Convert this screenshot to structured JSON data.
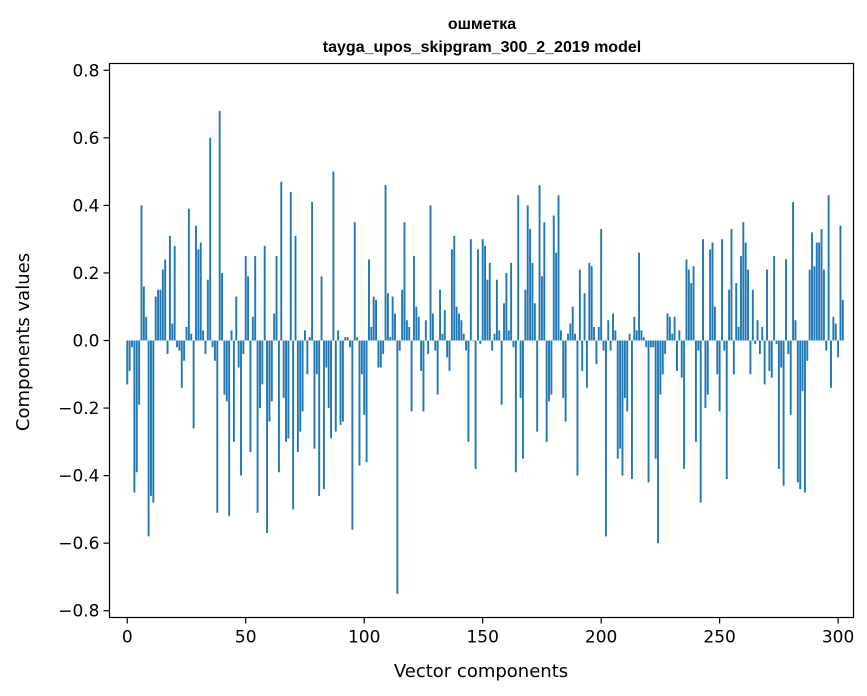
{
  "chart_data": {
    "type": "bar",
    "title_line1": "ошметка",
    "title_line2": "tayga_upos_skipgram_300_2_2019 model",
    "xlabel": "Vector components",
    "ylabel": "Components values",
    "xlim": [
      -7.5,
      306.5
    ],
    "ylim": [
      -0.82,
      0.82
    ],
    "xticks": [
      0,
      50,
      100,
      150,
      200,
      250,
      300
    ],
    "yticks": [
      0.8,
      0.6,
      0.4,
      0.2,
      0.0,
      -0.2,
      -0.4,
      -0.6,
      -0.8
    ],
    "ytick_labels": [
      "0.8",
      "0.6",
      "0.4",
      "0.2",
      "0.0",
      "−0.2",
      "−0.4",
      "−0.6",
      "−0.8"
    ],
    "bar_color": "#1f77b4",
    "values": [
      -0.13,
      -0.09,
      -0.02,
      -0.45,
      -0.39,
      -0.19,
      0.4,
      0.16,
      0.07,
      -0.58,
      -0.46,
      -0.48,
      0.13,
      0.15,
      0.15,
      0.21,
      0.24,
      -0.04,
      0.31,
      0.05,
      0.28,
      -0.02,
      -0.03,
      -0.14,
      -0.06,
      0.04,
      0.39,
      0.02,
      -0.26,
      0.34,
      0.27,
      0.29,
      0.03,
      -0.04,
      0.18,
      0.6,
      -0.02,
      -0.06,
      -0.51,
      0.68,
      0.2,
      -0.16,
      -0.18,
      -0.52,
      0.03,
      -0.3,
      0.13,
      -0.08,
      -0.4,
      -0.04,
      0.25,
      0.19,
      -0.33,
      0.07,
      0.25,
      -0.51,
      -0.2,
      -0.13,
      0.28,
      -0.57,
      -0.24,
      -0.18,
      0.08,
      0.25,
      -0.39,
      0.47,
      -0.17,
      -0.3,
      -0.29,
      0.44,
      -0.5,
      0.31,
      -0.33,
      -0.27,
      -0.21,
      0.03,
      -0.1,
      0.01,
      0.41,
      -0.32,
      -0.1,
      -0.46,
      0.19,
      -0.44,
      -0.08,
      -0.2,
      -0.29,
      0.5,
      -0.27,
      0.03,
      -0.25,
      -0.24,
      0.01,
      0.01,
      -0.02,
      -0.56,
      0.35,
      0.01,
      -0.37,
      -0.1,
      -0.22,
      -0.36,
      0.24,
      0.04,
      0.13,
      0.12,
      -0.08,
      -0.08,
      -0.04,
      0.46,
      0.14,
      0.01,
      0.13,
      0.08,
      -0.75,
      -0.03,
      0.15,
      0.35,
      0.06,
      0.04,
      -0.21,
      0.25,
      0.1,
      0.07,
      -0.09,
      -0.21,
      0.06,
      -0.04,
      0.4,
      0.08,
      -0.03,
      -0.16,
      0.15,
      0.02,
      0.09,
      -0.05,
      -0.09,
      0.27,
      0.31,
      0.1,
      0.08,
      0.06,
      0.02,
      -0.03,
      -0.3,
      0.3,
      0.0,
      -0.38,
      0.27,
      -0.01,
      0.3,
      0.28,
      0.18,
      0.23,
      -0.03,
      0.02,
      0.18,
      0.03,
      -0.19,
      0.11,
      0.2,
      0.03,
      0.23,
      -0.02,
      -0.39,
      0.43,
      -0.17,
      -0.35,
      0.15,
      0.4,
      0.33,
      0.23,
      0.11,
      -0.27,
      0.46,
      0.19,
      0.35,
      -0.3,
      -0.18,
      -0.16,
      0.37,
      0.26,
      0.43,
      0.03,
      -0.17,
      -0.24,
      0.02,
      0.05,
      0.1,
      0.02,
      -0.4,
      0.21,
      -0.09,
      0.14,
      -0.14,
      0.23,
      0.22,
      0.04,
      -0.07,
      0.04,
      0.33,
      -0.03,
      -0.58,
      0.06,
      -0.03,
      0.08,
      0.03,
      -0.35,
      -0.32,
      -0.4,
      -0.17,
      -0.21,
      0.02,
      -0.41,
      0.07,
      0.03,
      0.26,
      0.03,
      0.01,
      -0.02,
      -0.42,
      -0.02,
      -0.02,
      -0.35,
      -0.6,
      -0.16,
      -0.1,
      -0.04,
      0.08,
      0.07,
      0.02,
      0.07,
      -0.09,
      0.03,
      -0.11,
      -0.38,
      0.24,
      0.21,
      0.17,
      0.22,
      -0.3,
      -0.03,
      -0.48,
      0.3,
      -0.2,
      -0.16,
      0.27,
      0.29,
      0.1,
      -0.1,
      -0.21,
      0.3,
      -0.03,
      -0.41,
      0.15,
      0.33,
      -0.1,
      0.17,
      0.04,
      0.25,
      0.35,
      0.29,
      0.21,
      -0.1,
      0.15,
      -0.01,
      0.06,
      -0.04,
      0.04,
      -0.13,
      0.21,
      -0.09,
      -0.11,
      0.25,
      -0.01,
      -0.38,
      -0.08,
      -0.43,
      0.24,
      -0.04,
      -0.22,
      0.41,
      0.06,
      -0.42,
      -0.44,
      -0.15,
      -0.45,
      -0.06,
      0.21,
      0.32,
      0.22,
      0.29,
      0.29,
      0.33,
      0.21,
      -0.03,
      0.43,
      -0.14,
      0.07,
      0.05,
      -0.05,
      0.34,
      0.12
    ]
  }
}
